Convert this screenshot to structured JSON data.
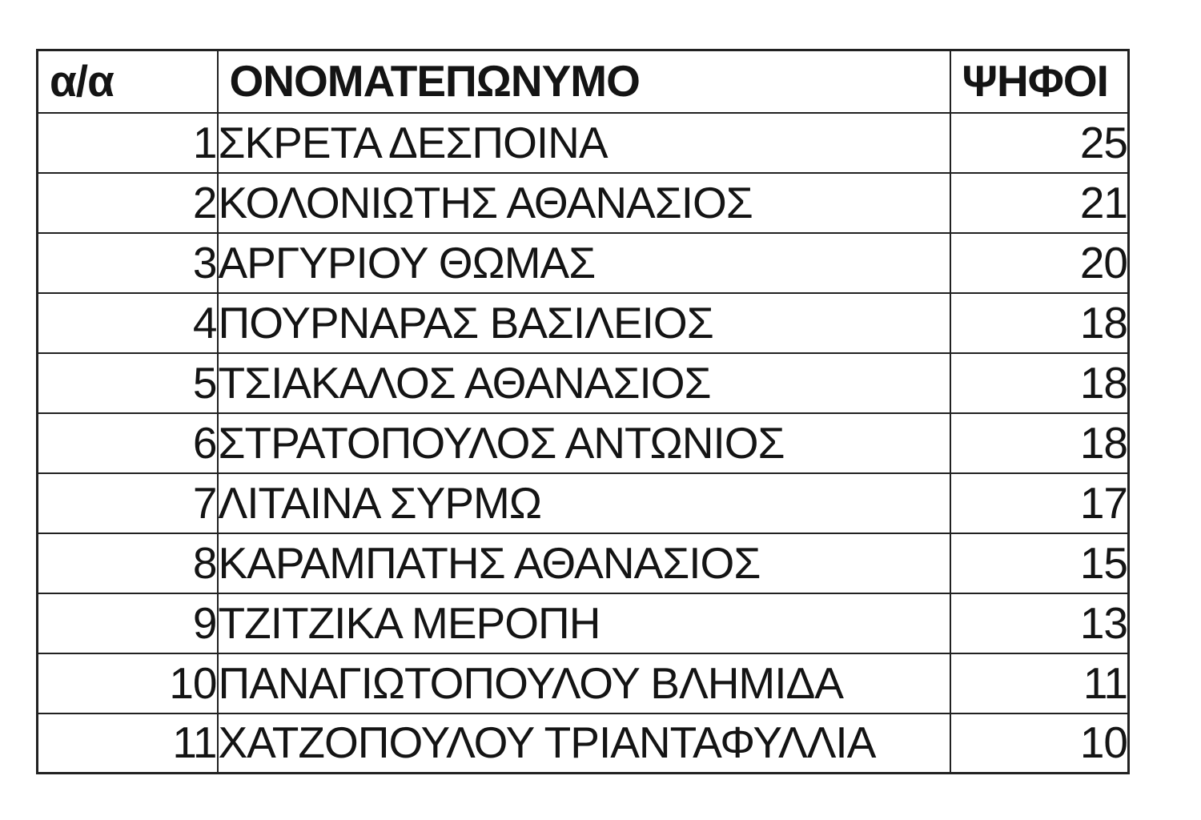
{
  "table": {
    "columns": [
      {
        "key": "index",
        "label": "α/α"
      },
      {
        "key": "name",
        "label": "ΟΝΟΜΑΤΕΠΩΝΥΜΟ"
      },
      {
        "key": "votes",
        "label": "ΨΗΦΟΙ"
      }
    ],
    "rows": [
      {
        "index": "1",
        "name": "ΣΚΡΕΤΑ ΔΕΣΠΟΙΝΑ",
        "votes": "25"
      },
      {
        "index": "2",
        "name": "ΚΟΛΟΝΙΩΤΗΣ ΑΘΑΝΑΣΙΟΣ",
        "votes": "21"
      },
      {
        "index": "3",
        "name": "ΑΡΓΥΡΙΟΥ ΘΩΜΑΣ",
        "votes": "20"
      },
      {
        "index": "4",
        "name": "ΠΟΥΡΝΑΡΑΣ ΒΑΣΙΛΕΙΟΣ",
        "votes": "18"
      },
      {
        "index": "5",
        "name": "ΤΣΙΑΚΑΛΟΣ ΑΘΑΝΑΣΙΟΣ",
        "votes": "18"
      },
      {
        "index": "6",
        "name": "ΣΤΡΑΤΟΠΟΥΛΟΣ ΑΝΤΩΝΙΟΣ",
        "votes": "18"
      },
      {
        "index": "7",
        "name": "ΛΙΤΑΙΝΑ ΣΥΡΜΩ",
        "votes": "17"
      },
      {
        "index": "8",
        "name": "ΚΑΡΑΜΠΑΤΗΣ ΑΘΑΝΑΣΙΟΣ",
        "votes": "15"
      },
      {
        "index": "9",
        "name": "ΤΖΙΤΖΙΚΑ ΜΕΡΟΠΗ",
        "votes": "13"
      },
      {
        "index": "10",
        "name": "ΠΑΝΑΓΙΩΤΟΠΟΥΛΟΥ ΒΛΗΜΙΔΑ",
        "votes": "11"
      },
      {
        "index": "11",
        "name": "ΧΑΤΖΟΠΟΥΛΟΥ ΤΡΙΑΝΤΑΦΥΛΛΙΑ",
        "votes": "10"
      }
    ],
    "colors": {
      "border": "#212121",
      "text": "#141414",
      "background": "#ffffff"
    }
  }
}
